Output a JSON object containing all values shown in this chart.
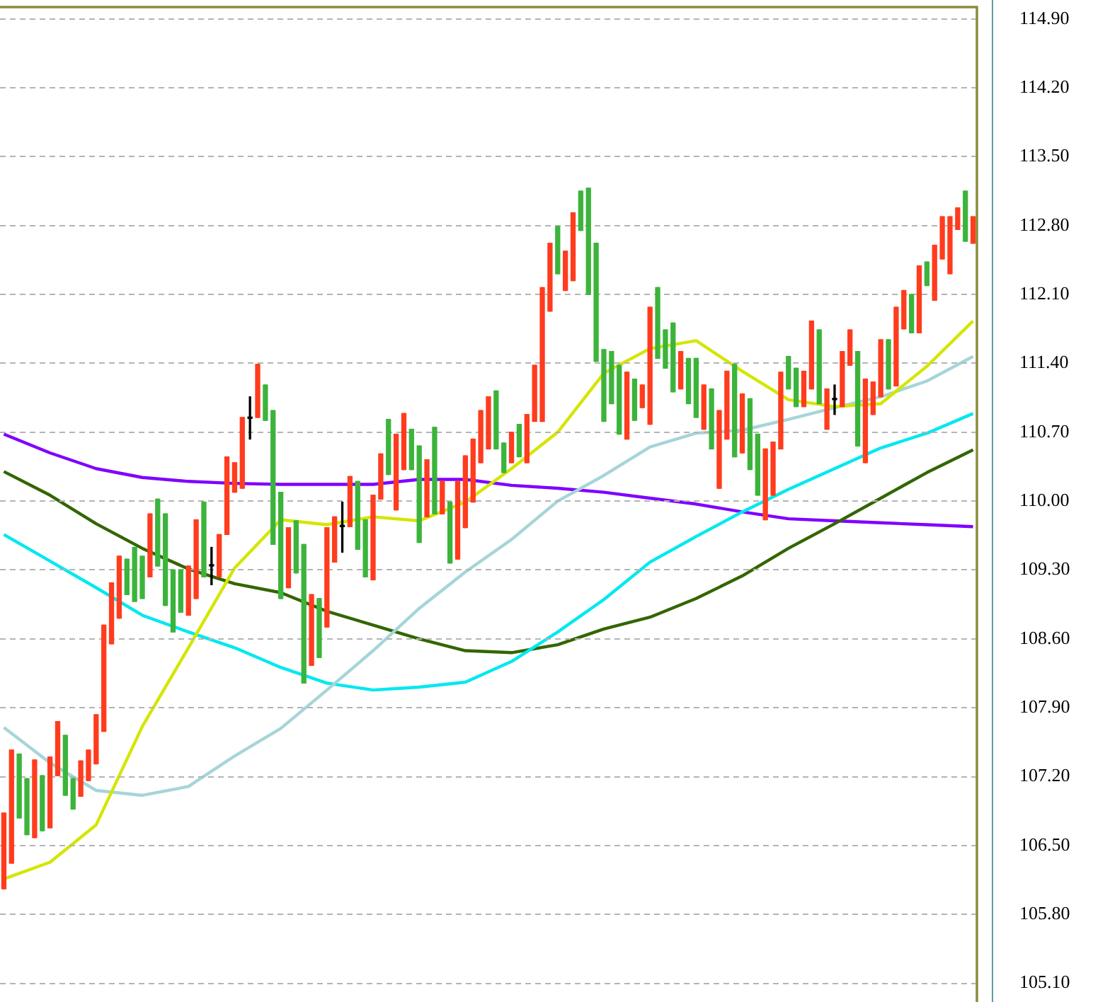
{
  "chart_data": [
    {
      "type": "candlestick",
      "categories": [
        null,
        null,
        null,
        null,
        null,
        null,
        null,
        null,
        null,
        null,
        null,
        null,
        null,
        null,
        null,
        null,
        null,
        null,
        null,
        null,
        null,
        null,
        null,
        null,
        null,
        null,
        null,
        null,
        null,
        null,
        null,
        null,
        null,
        null,
        null,
        null,
        null,
        null,
        null,
        null,
        null,
        null,
        null,
        null,
        null,
        null,
        null,
        null,
        null,
        null,
        null,
        null,
        null,
        null,
        null,
        null,
        null,
        null,
        null,
        null,
        null,
        null,
        null,
        null,
        null,
        null,
        null,
        null,
        null,
        null,
        null,
        null,
        null,
        null,
        null,
        null,
        null,
        null,
        null,
        null,
        null,
        null,
        null,
        null,
        null,
        null,
        null,
        null,
        null,
        null,
        null,
        null,
        null,
        null,
        null,
        null,
        null,
        null,
        null,
        null,
        null,
        null,
        null,
        null,
        null,
        null,
        null,
        null,
        null,
        null,
        null,
        null,
        null,
        null,
        null,
        null,
        null,
        null,
        null,
        null,
        null,
        null,
        null,
        null,
        null,
        null,
        null
      ],
      "ohlc": [
        [
          106.06,
          106.83,
          106.06,
          106.83
        ],
        [
          106.32,
          107.47,
          106.32,
          107.47
        ],
        [
          107.43,
          107.43,
          106.78,
          106.78
        ],
        [
          107.18,
          107.18,
          106.61,
          106.61
        ],
        [
          106.58,
          107.37,
          106.58,
          107.37
        ],
        [
          107.21,
          107.21,
          106.65,
          106.65
        ],
        [
          106.68,
          107.4,
          106.68,
          107.4
        ],
        [
          107.21,
          107.76,
          107.21,
          107.76
        ],
        [
          107.62,
          107.62,
          107.01,
          107.01
        ],
        [
          107.18,
          107.18,
          106.87,
          106.87
        ],
        [
          107.0,
          107.36,
          107.0,
          107.36
        ],
        [
          107.16,
          107.47,
          107.16,
          107.47
        ],
        [
          107.33,
          107.83,
          107.33,
          107.83
        ],
        [
          107.66,
          108.74,
          107.66,
          108.74
        ],
        [
          108.55,
          109.17,
          108.55,
          109.17
        ],
        [
          108.81,
          109.44,
          108.81,
          109.44
        ],
        [
          109.41,
          109.41,
          109.05,
          109.05
        ],
        [
          109.53,
          109.53,
          108.98,
          108.98
        ],
        [
          109.44,
          109.44,
          109.01,
          109.01
        ],
        [
          109.23,
          109.87,
          109.23,
          109.87
        ],
        [
          110.02,
          110.02,
          109.34,
          109.34
        ],
        [
          109.87,
          109.87,
          108.94,
          108.94
        ],
        [
          109.3,
          109.3,
          108.67,
          108.67
        ],
        [
          109.3,
          109.3,
          108.87,
          108.87
        ],
        [
          108.84,
          109.34,
          108.84,
          109.34
        ],
        [
          109.01,
          109.81,
          109.01,
          109.81
        ],
        [
          109.99,
          109.99,
          109.23,
          109.23
        ],
        [
          109.34,
          109.53,
          109.15,
          109.34
        ],
        [
          109.23,
          109.66,
          109.23,
          109.66
        ],
        [
          109.66,
          110.45,
          109.66,
          110.45
        ],
        [
          110.09,
          110.39,
          110.09,
          110.39
        ],
        [
          110.13,
          110.85,
          110.13,
          110.85
        ],
        [
          110.84,
          111.06,
          110.63,
          110.84
        ],
        [
          110.85,
          111.39,
          110.85,
          111.39
        ],
        [
          111.18,
          111.18,
          110.82,
          110.82
        ],
        [
          110.92,
          110.92,
          109.56,
          109.56
        ],
        [
          110.09,
          110.09,
          109.01,
          109.01
        ],
        [
          109.12,
          109.73,
          109.12,
          109.73
        ],
        [
          109.8,
          109.8,
          109.27,
          109.27
        ],
        [
          109.56,
          109.56,
          108.15,
          108.15
        ],
        [
          108.33,
          109.05,
          108.33,
          109.05
        ],
        [
          109.01,
          109.01,
          108.41,
          108.41
        ],
        [
          108.72,
          109.73,
          108.72,
          109.73
        ],
        [
          109.38,
          109.84,
          109.38,
          109.84
        ],
        [
          109.74,
          109.99,
          109.48,
          109.74
        ],
        [
          109.74,
          110.25,
          109.74,
          110.25
        ],
        [
          110.2,
          110.2,
          109.51,
          109.51
        ],
        [
          109.81,
          109.81,
          109.23,
          109.23
        ],
        [
          109.2,
          110.06,
          109.2,
          110.06
        ],
        [
          110.02,
          110.48,
          110.02,
          110.48
        ],
        [
          110.83,
          110.83,
          110.27,
          110.27
        ],
        [
          109.91,
          110.68,
          109.91,
          110.68
        ],
        [
          110.32,
          110.89,
          110.32,
          110.89
        ],
        [
          110.73,
          110.73,
          110.32,
          110.32
        ],
        [
          110.56,
          110.56,
          109.58,
          109.58
        ],
        [
          109.84,
          110.42,
          109.84,
          110.42
        ],
        [
          110.75,
          110.75,
          109.87,
          109.87
        ],
        [
          109.87,
          110.2,
          109.87,
          110.2
        ],
        [
          109.99,
          109.99,
          109.37,
          109.37
        ],
        [
          109.41,
          110.2,
          109.41,
          110.2
        ],
        [
          109.73,
          110.46,
          109.73,
          110.46
        ],
        [
          109.99,
          110.63,
          109.99,
          110.63
        ],
        [
          110.39,
          110.92,
          110.39,
          110.92
        ],
        [
          110.53,
          111.06,
          110.53,
          111.06
        ],
        [
          111.12,
          111.12,
          110.53,
          110.53
        ],
        [
          110.59,
          110.59,
          110.29,
          110.29
        ],
        [
          110.39,
          110.7,
          110.39,
          110.7
        ],
        [
          110.78,
          110.78,
          110.45,
          110.45
        ],
        [
          110.39,
          110.88,
          110.39,
          110.88
        ],
        [
          110.81,
          111.38,
          110.81,
          111.38
        ],
        [
          110.81,
          112.17,
          110.81,
          112.17
        ],
        [
          111.93,
          112.62,
          111.93,
          112.62
        ],
        [
          112.79,
          112.79,
          112.31,
          112.31
        ],
        [
          112.14,
          112.54,
          112.14,
          112.54
        ],
        [
          112.24,
          112.93,
          112.24,
          112.93
        ],
        [
          113.15,
          113.15,
          112.75,
          112.75
        ],
        [
          113.18,
          113.18,
          112.1,
          112.1
        ],
        [
          112.62,
          112.62,
          111.42,
          111.42
        ],
        [
          111.54,
          111.54,
          110.81,
          110.81
        ],
        [
          111.52,
          111.52,
          110.99,
          110.99
        ],
        [
          111.38,
          111.38,
          110.68,
          110.68
        ],
        [
          110.63,
          111.31,
          110.63,
          111.31
        ],
        [
          111.24,
          111.24,
          110.82,
          110.82
        ],
        [
          110.95,
          111.18,
          110.95,
          111.18
        ],
        [
          110.78,
          111.97,
          110.78,
          111.97
        ],
        [
          112.17,
          112.17,
          111.45,
          111.45
        ],
        [
          111.74,
          111.74,
          111.35,
          111.35
        ],
        [
          111.81,
          111.81,
          111.11,
          111.11
        ],
        [
          111.14,
          111.52,
          111.14,
          111.52
        ],
        [
          111.45,
          111.45,
          110.99,
          110.99
        ],
        [
          111.45,
          111.45,
          110.85,
          110.85
        ],
        [
          110.73,
          111.18,
          110.73,
          111.18
        ],
        [
          111.14,
          111.14,
          110.53,
          110.53
        ],
        [
          110.13,
          110.92,
          110.13,
          110.92
        ],
        [
          110.63,
          111.32,
          110.63,
          111.32
        ],
        [
          111.39,
          111.39,
          110.45,
          110.45
        ],
        [
          110.49,
          111.09,
          110.49,
          111.09
        ],
        [
          111.04,
          111.04,
          110.32,
          110.32
        ],
        [
          110.68,
          110.68,
          110.06,
          110.06
        ],
        [
          109.81,
          110.53,
          109.81,
          110.53
        ],
        [
          110.06,
          110.6,
          110.06,
          110.6
        ],
        [
          110.53,
          111.31,
          110.53,
          111.31
        ],
        [
          111.47,
          111.47,
          111.14,
          111.14
        ],
        [
          111.35,
          111.35,
          110.96,
          110.96
        ],
        [
          110.96,
          111.32,
          110.96,
          111.32
        ],
        [
          111.14,
          111.83,
          111.14,
          111.83
        ],
        [
          111.74,
          111.74,
          110.99,
          110.99
        ],
        [
          110.73,
          111.14,
          110.73,
          111.14
        ],
        [
          111.03,
          111.18,
          110.88,
          111.03
        ],
        [
          110.96,
          111.52,
          110.96,
          111.52
        ],
        [
          111.38,
          111.74,
          111.38,
          111.74
        ],
        [
          111.52,
          111.52,
          110.56,
          110.56
        ],
        [
          110.39,
          111.24,
          110.39,
          111.24
        ],
        [
          110.88,
          111.21,
          110.88,
          111.21
        ],
        [
          111.06,
          111.64,
          111.06,
          111.64
        ],
        [
          111.64,
          111.64,
          111.14,
          111.14
        ],
        [
          111.17,
          111.97,
          111.17,
          111.97
        ],
        [
          111.75,
          112.14,
          111.75,
          112.14
        ],
        [
          112.1,
          112.1,
          111.71,
          111.71
        ],
        [
          111.71,
          112.39,
          111.71,
          112.39
        ],
        [
          112.43,
          112.43,
          112.19,
          112.19
        ],
        [
          112.04,
          112.6,
          112.04,
          112.6
        ],
        [
          112.46,
          112.89,
          112.46,
          112.89
        ],
        [
          112.31,
          112.89,
          112.31,
          112.89
        ],
        [
          112.76,
          112.98,
          112.76,
          112.98
        ],
        [
          113.15,
          113.15,
          112.64,
          112.64
        ],
        [
          112.62,
          112.89,
          112.62,
          112.89
        ]
      ],
      "colors": [
        "#ff3c1e",
        "#ff3c1e",
        "#3cb43c",
        "#3cb43c",
        "#ff3c1e",
        "#3cb43c",
        "#ff3c1e",
        "#ff3c1e",
        "#3cb43c",
        "#3cb43c",
        "#ff3c1e",
        "#ff3c1e",
        "#ff3c1e",
        "#ff3c1e",
        "#ff3c1e",
        "#ff3c1e",
        "#3cb43c",
        "#3cb43c",
        "#3cb43c",
        "#ff3c1e",
        "#3cb43c",
        "#3cb43c",
        "#3cb43c",
        "#3cb43c",
        "#ff3c1e",
        "#ff3c1e",
        "#3cb43c",
        "#000000",
        "#ff3c1e",
        "#ff3c1e",
        "#ff3c1e",
        "#ff3c1e",
        "#000000",
        "#ff3c1e",
        "#3cb43c",
        "#3cb43c",
        "#3cb43c",
        "#ff3c1e",
        "#3cb43c",
        "#3cb43c",
        "#ff3c1e",
        "#3cb43c",
        "#ff3c1e",
        "#ff3c1e",
        "#000000",
        "#ff3c1e",
        "#3cb43c",
        "#3cb43c",
        "#ff3c1e",
        "#ff3c1e",
        "#3cb43c",
        "#ff3c1e",
        "#ff3c1e",
        "#3cb43c",
        "#3cb43c",
        "#ff3c1e",
        "#3cb43c",
        "#ff3c1e",
        "#3cb43c",
        "#ff3c1e",
        "#ff3c1e",
        "#ff3c1e",
        "#ff3c1e",
        "#ff3c1e",
        "#3cb43c",
        "#3cb43c",
        "#ff3c1e",
        "#3cb43c",
        "#ff3c1e",
        "#ff3c1e",
        "#ff3c1e",
        "#ff3c1e",
        "#3cb43c",
        "#ff3c1e",
        "#ff3c1e",
        "#3cb43c",
        "#3cb43c",
        "#3cb43c",
        "#3cb43c",
        "#3cb43c",
        "#3cb43c",
        "#ff3c1e",
        "#3cb43c",
        "#ff3c1e",
        "#ff3c1e",
        "#3cb43c",
        "#3cb43c",
        "#3cb43c",
        "#ff3c1e",
        "#3cb43c",
        "#3cb43c",
        "#ff3c1e",
        "#3cb43c",
        "#ff3c1e",
        "#ff3c1e",
        "#3cb43c",
        "#ff3c1e",
        "#3cb43c",
        "#3cb43c",
        "#ff3c1e",
        "#ff3c1e",
        "#ff3c1e",
        "#3cb43c",
        "#3cb43c",
        "#ff3c1e",
        "#ff3c1e",
        "#3cb43c",
        "#ff3c1e",
        "#000000",
        "#ff3c1e",
        "#ff3c1e",
        "#3cb43c",
        "#ff3c1e",
        "#ff3c1e",
        "#ff3c1e",
        "#3cb43c",
        "#ff3c1e",
        "#ff3c1e",
        "#3cb43c",
        "#ff3c1e",
        "#3cb43c",
        "#ff3c1e",
        "#ff3c1e",
        "#ff3c1e",
        "#ff3c1e",
        "#3cb43c",
        "#ff3c1e"
      ],
      "ylim": [
        104.91,
        115.02
      ],
      "yticks": [
        {
          "value": 105.1,
          "label": "105.10"
        },
        {
          "value": 105.8,
          "label": "105.80"
        },
        {
          "value": 106.5,
          "label": "106.50"
        },
        {
          "value": 107.2,
          "label": "107.20"
        },
        {
          "value": 107.9,
          "label": "107.90"
        },
        {
          "value": 108.6,
          "label": "108.60"
        },
        {
          "value": 109.3,
          "label": "109.30"
        },
        {
          "value": 110,
          "label": "110.00"
        },
        {
          "value": 110.7,
          "label": "110.70"
        },
        {
          "value": 111.4,
          "label": "111.40"
        },
        {
          "value": 112.1,
          "label": "112.10"
        },
        {
          "value": 112.8,
          "label": "112.80"
        },
        {
          "value": 113.5,
          "label": "113.50"
        },
        {
          "value": 114.2,
          "label": "114.20"
        },
        {
          "value": 114.9,
          "label": "114.90"
        }
      ],
      "tick_labels": "y",
      "grid": "y"
    },
    {
      "type": "line",
      "categories": [
        null,
        null,
        null,
        null,
        null,
        null,
        null,
        null,
        null,
        null,
        null,
        null,
        null,
        null,
        null,
        null,
        null,
        null,
        null,
        null,
        null,
        null
      ],
      "series": [
        {
          "color": "#d4e600",
          "values": [
            106.16,
            106.33,
            106.71,
            107.71,
            108.51,
            109.32,
            109.81,
            109.76,
            109.84,
            109.8,
            109.99,
            110.33,
            110.7,
            111.3,
            111.55,
            111.63,
            111.32,
            111.03,
            110.96,
            110.99,
            111.37,
            111.83
          ]
        },
        {
          "color": "#a6d5d8",
          "values": [
            107.7,
            107.34,
            107.06,
            107.01,
            107.1,
            107.41,
            107.69,
            108.08,
            108.48,
            108.91,
            109.28,
            109.61,
            110.0,
            110.26,
            110.55,
            110.69,
            110.72,
            110.83,
            110.95,
            111.06,
            111.22,
            111.47
          ]
        },
        {
          "color": "#00e8f0",
          "values": [
            109.66,
            109.39,
            109.12,
            108.84,
            108.67,
            108.51,
            108.31,
            108.15,
            108.08,
            108.11,
            108.16,
            108.37,
            108.67,
            109.0,
            109.38,
            109.64,
            109.89,
            110.12,
            110.33,
            110.54,
            110.69,
            110.89
          ]
        },
        {
          "color": "#336600",
          "values": [
            110.3,
            110.06,
            109.77,
            109.52,
            109.31,
            109.16,
            109.07,
            108.88,
            108.74,
            108.6,
            108.48,
            108.46,
            108.54,
            108.7,
            108.82,
            109.01,
            109.24,
            109.52,
            109.77,
            110.03,
            110.29,
            110.52
          ]
        },
        {
          "color": "#8000ff",
          "values": [
            110.68,
            110.49,
            110.33,
            110.24,
            110.2,
            110.18,
            110.17,
            110.17,
            110.17,
            110.22,
            110.22,
            110.16,
            110.13,
            110.09,
            110.03,
            109.97,
            109.89,
            109.82,
            109.8,
            109.78,
            109.76,
            109.74
          ]
        }
      ],
      "ylim": [
        104.91,
        115.02
      ],
      "tick_labels": false,
      "marker": "none",
      "line_style": "solid"
    }
  ]
}
